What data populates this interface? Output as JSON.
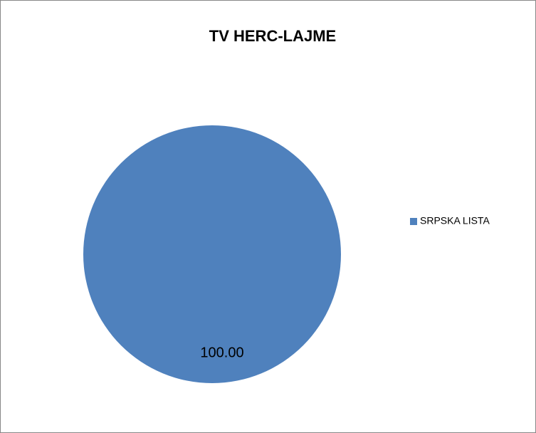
{
  "chart_data": {
    "type": "pie",
    "title": "TV HERC-LAJME",
    "categories": [
      "SRPSKA LISTA"
    ],
    "values": [
      100
    ],
    "value_labels": [
      "100.00"
    ],
    "colors": [
      "#4f81bd"
    ],
    "legend": "right"
  }
}
